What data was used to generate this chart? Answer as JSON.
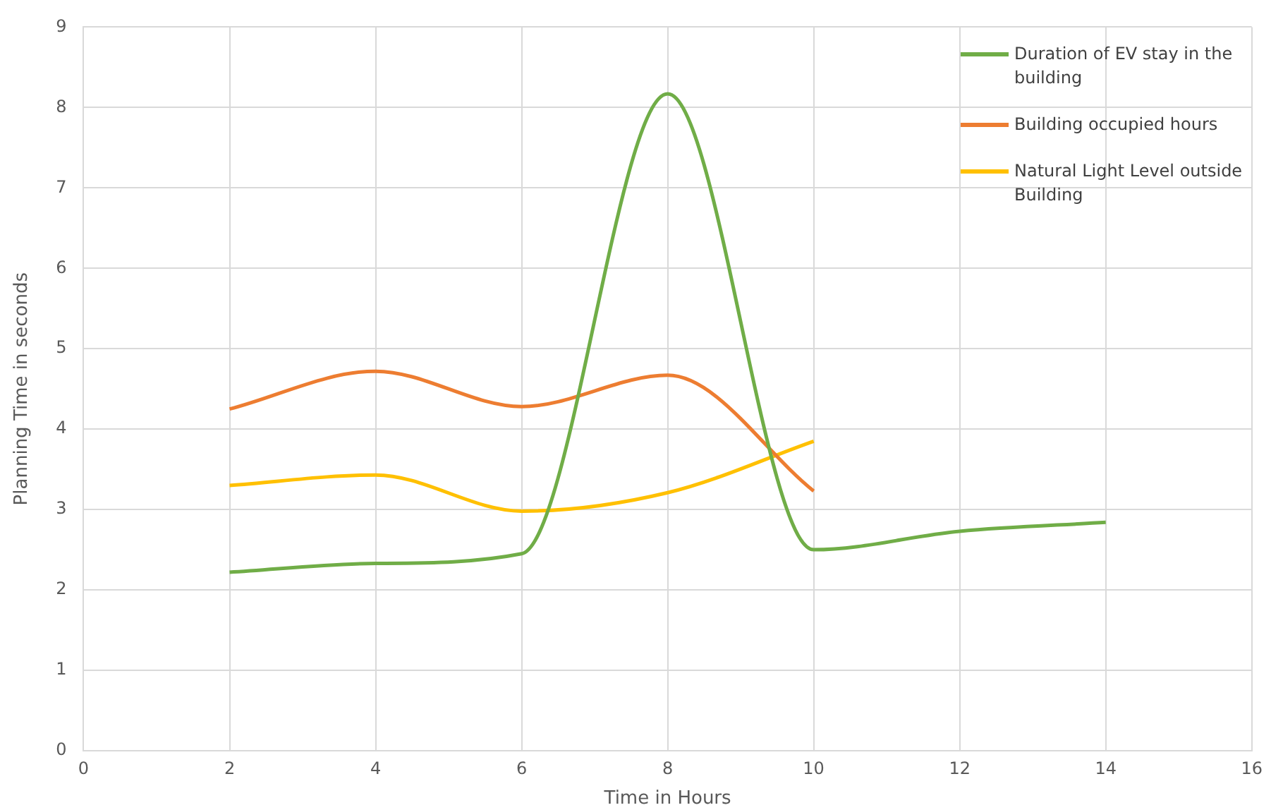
{
  "chart_data": {
    "type": "line",
    "xlabel": "Time in Hours",
    "ylabel": "Planning Time in seconds",
    "x": [
      2,
      4,
      6,
      8,
      10,
      12,
      14
    ],
    "series": [
      {
        "name": "Duration of EV stay in the building",
        "color": "#70ad47",
        "values": [
          2.22,
          2.33,
          2.45,
          8.17,
          2.5,
          2.73,
          2.84
        ]
      },
      {
        "name": "Building occupied hours",
        "color": "#ed7d31",
        "values": [
          4.25,
          4.72,
          4.28,
          4.67,
          3.23,
          null,
          null
        ]
      },
      {
        "name": "Natural Light Level outside Building",
        "color": "#ffc000",
        "values": [
          3.3,
          3.43,
          2.98,
          3.21,
          3.85,
          null,
          null
        ]
      }
    ],
    "xlim": [
      0,
      16
    ],
    "xticks": [
      0,
      2,
      4,
      6,
      8,
      10,
      12,
      14,
      16
    ],
    "ylim": [
      0,
      9
    ],
    "yticks": [
      0,
      1,
      2,
      3,
      4,
      5,
      6,
      7,
      8,
      9
    ],
    "grid": true,
    "legend": "top right",
    "marker": "none",
    "line_style": "solid"
  }
}
